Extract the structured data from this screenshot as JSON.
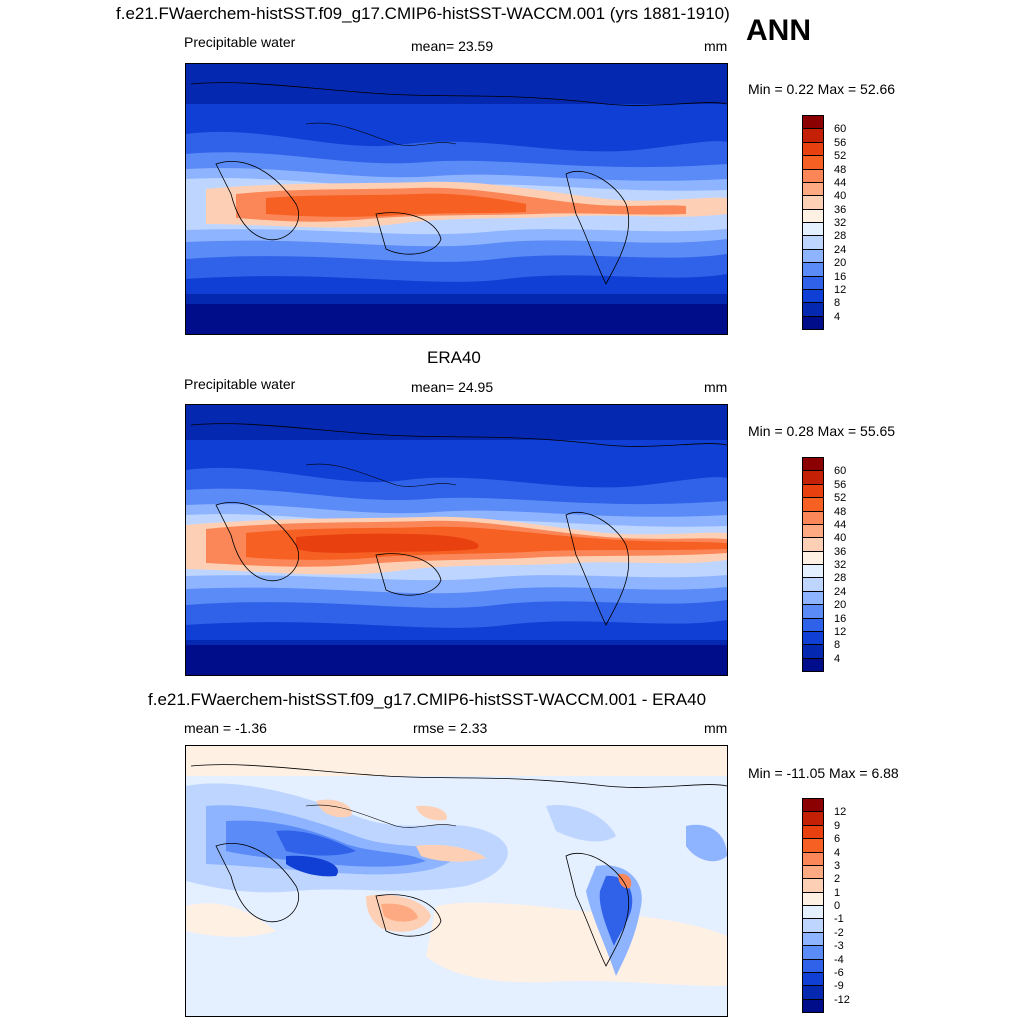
{
  "annual_label": "ANN",
  "panels": [
    {
      "title": "f.e21.FWaerchem-histSST.f09_g17.CMIP6-histSST-WACCM.001 (yrs 1881-1910)",
      "left_label": "Precipitable water",
      "center_label": "mean=  23.59",
      "units": "mm",
      "minmax": "Min =   0.22 Max =  52.66",
      "colorbar": {
        "labels": [
          "60",
          "56",
          "52",
          "48",
          "44",
          "40",
          "36",
          "32",
          "28",
          "24",
          "20",
          "16",
          "12",
          "8",
          "4"
        ],
        "colors": [
          "#8b0000",
          "#c42005",
          "#e8400f",
          "#f76023",
          "#fb8758",
          "#fdaa82",
          "#fdd0b5",
          "#fff0e4",
          "#e4efff",
          "#bed6ff",
          "#8fb4ff",
          "#5b8bf7",
          "#2f62e8",
          "#0f3fd4",
          "#0528b0",
          "#000d8a"
        ]
      }
    },
    {
      "title": "ERA40",
      "left_label": "Precipitable water",
      "center_label": "mean=  24.95",
      "units": "mm",
      "minmax": "Min =   0.28 Max =  55.65",
      "colorbar": {
        "labels": [
          "60",
          "56",
          "52",
          "48",
          "44",
          "40",
          "36",
          "32",
          "28",
          "24",
          "20",
          "16",
          "12",
          "8",
          "4"
        ],
        "colors": [
          "#8b0000",
          "#c42005",
          "#e8400f",
          "#f76023",
          "#fb8758",
          "#fdaa82",
          "#fdd0b5",
          "#fff0e4",
          "#e4efff",
          "#bed6ff",
          "#8fb4ff",
          "#5b8bf7",
          "#2f62e8",
          "#0f3fd4",
          "#0528b0",
          "#000d8a"
        ]
      }
    },
    {
      "title": "f.e21.FWaerchem-histSST.f09_g17.CMIP6-histSST-WACCM.001 - ERA40",
      "left_label": "mean =  -1.36",
      "center_label": "rmse =    2.33",
      "units": "mm",
      "minmax": "Min = -11.05 Max =   6.88",
      "colorbar": {
        "labels": [
          "12",
          "9",
          "6",
          "4",
          "3",
          "2",
          "1",
          "0",
          "-1",
          "-2",
          "-3",
          "-4",
          "-6",
          "-9",
          "-12"
        ],
        "colors": [
          "#8b0000",
          "#c42005",
          "#e8400f",
          "#f76023",
          "#fb8758",
          "#fdaa82",
          "#fdd0b5",
          "#fff0e4",
          "#e4efff",
          "#bed6ff",
          "#8fb4ff",
          "#5b8bf7",
          "#2f62e8",
          "#0f3fd4",
          "#0528b0",
          "#000d8a"
        ]
      }
    }
  ]
}
